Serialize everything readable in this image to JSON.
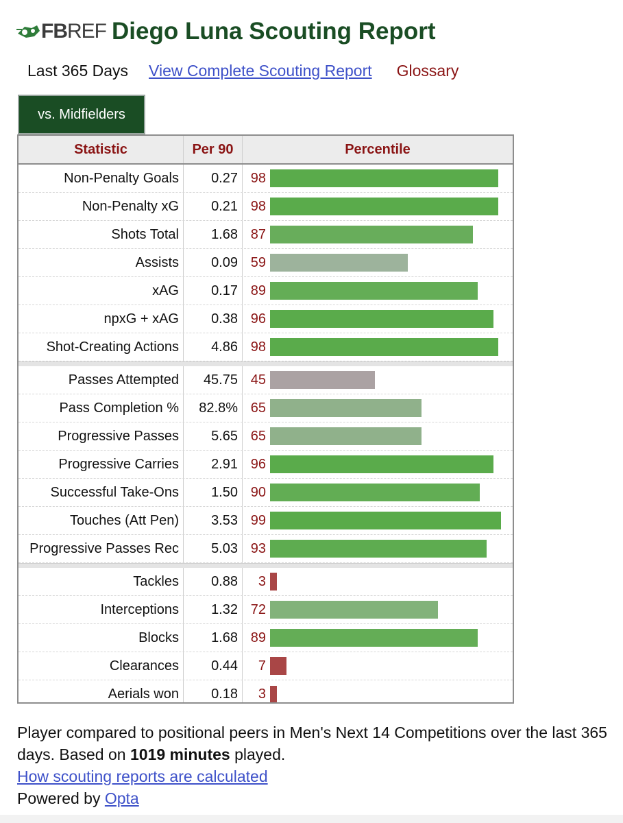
{
  "header": {
    "logo_text_bold": "FB",
    "logo_text_light": "REF",
    "title": "Diego Luna Scouting Report"
  },
  "subnav": {
    "period": "Last 365 Days",
    "complete_link": "View Complete Scouting Report",
    "glossary": "Glossary"
  },
  "tab": {
    "label": "vs. Midfielders"
  },
  "table": {
    "columns": [
      "Statistic",
      "Per 90",
      "Percentile"
    ],
    "colors": {
      "high": "#5aab4b",
      "mid_high": "#70b061",
      "mid": "#9db39c",
      "mid_green": "#8db58a",
      "neutral": "#aba2a3",
      "low": "#a94646"
    },
    "groups": [
      [
        {
          "stat": "Non-Penalty Goals",
          "per90": "0.27",
          "pct": 98,
          "color": "#5aab4b"
        },
        {
          "stat": "Non-Penalty xG",
          "per90": "0.21",
          "pct": 98,
          "color": "#5aab4b"
        },
        {
          "stat": "Shots Total",
          "per90": "1.68",
          "pct": 87,
          "color": "#68ad5b"
        },
        {
          "stat": "Assists",
          "per90": "0.09",
          "pct": 59,
          "color": "#9db39c"
        },
        {
          "stat": "xAG",
          "per90": "0.17",
          "pct": 89,
          "color": "#64ad56"
        },
        {
          "stat": "npxG + xAG",
          "per90": "0.38",
          "pct": 96,
          "color": "#5aab4b"
        },
        {
          "stat": "Shot-Creating Actions",
          "per90": "4.86",
          "pct": 98,
          "color": "#5aab4b"
        }
      ],
      [
        {
          "stat": "Passes Attempted",
          "per90": "45.75",
          "pct": 45,
          "color": "#aba2a3"
        },
        {
          "stat": "Pass Completion %",
          "per90": "82.8%",
          "pct": 65,
          "color": "#90b18b"
        },
        {
          "stat": "Progressive Passes",
          "per90": "5.65",
          "pct": 65,
          "color": "#90b18b"
        },
        {
          "stat": "Progressive Carries",
          "per90": "2.91",
          "pct": 96,
          "color": "#5aab4b"
        },
        {
          "stat": "Successful Take-Ons",
          "per90": "1.50",
          "pct": 90,
          "color": "#62ad54"
        },
        {
          "stat": "Touches (Att Pen)",
          "per90": "3.53",
          "pct": 99,
          "color": "#59ab49"
        },
        {
          "stat": "Progressive Passes Rec",
          "per90": "5.03",
          "pct": 93,
          "color": "#5eac50"
        }
      ],
      [
        {
          "stat": "Tackles",
          "per90": "0.88",
          "pct": 3,
          "color": "#a94646"
        },
        {
          "stat": "Interceptions",
          "per90": "1.32",
          "pct": 72,
          "color": "#82b27a"
        },
        {
          "stat": "Blocks",
          "per90": "1.68",
          "pct": 89,
          "color": "#64ad56"
        },
        {
          "stat": "Clearances",
          "per90": "0.44",
          "pct": 7,
          "color": "#a94646"
        },
        {
          "stat": "Aerials won",
          "per90": "0.18",
          "pct": 3,
          "color": "#a94646"
        }
      ]
    ]
  },
  "footer": {
    "line1_a": "Player compared to positional peers in Men's Next 14 Competitions over the last 365 days. Based on ",
    "line1_bold": "1019 minutes",
    "line1_b": " played.",
    "how_link": "How scouting reports are calculated",
    "powered_prefix": "Powered by ",
    "powered_link": "Opta"
  }
}
